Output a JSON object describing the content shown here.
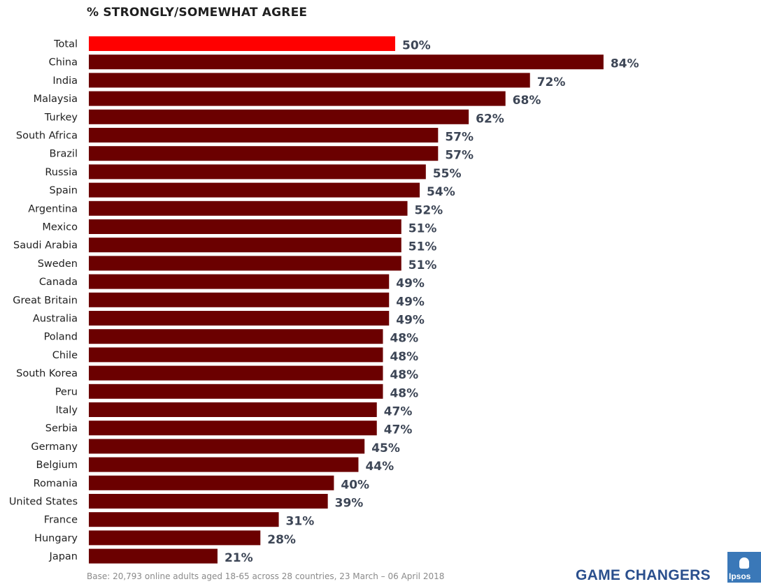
{
  "chart_data": {
    "type": "bar",
    "orientation": "horizontal",
    "subtitle": "% STRONGLY/SOMEWHAT AGREE",
    "categories": [
      "Total",
      "China",
      "India",
      "Malaysia",
      "Turkey",
      "South Africa",
      "Brazil",
      "Russia",
      "Spain",
      "Argentina",
      "Mexico",
      "Saudi Arabia",
      "Sweden",
      "Canada",
      "Great Britain",
      "Australia",
      "Poland",
      "Chile",
      "South Korea",
      "Peru",
      "Italy",
      "Serbia",
      "Germany",
      "Belgium",
      "Romania",
      "United States",
      "France",
      "Hungary",
      "Japan"
    ],
    "values": [
      50,
      84,
      72,
      68,
      62,
      57,
      57,
      55,
      54,
      52,
      51,
      51,
      51,
      49,
      49,
      49,
      48,
      48,
      48,
      48,
      47,
      47,
      45,
      44,
      40,
      39,
      31,
      28,
      21
    ],
    "value_labels": [
      "50%",
      "84%",
      "72%",
      "68%",
      "62%",
      "57%",
      "57%",
      "55%",
      "54%",
      "52%",
      "51%",
      "51%",
      "51%",
      "49%",
      "49%",
      "49%",
      "48%",
      "48%",
      "48%",
      "48%",
      "47%",
      "47%",
      "45%",
      "44%",
      "40%",
      "39%",
      "31%",
      "28%",
      "21%"
    ],
    "highlight_category": "Total",
    "colors": {
      "highlight": "#ff0000",
      "bar": "#6b0000",
      "value_label": "#3d4656"
    },
    "xlim": [
      0,
      84
    ],
    "grid": false,
    "legend": "none"
  },
  "footer": {
    "base_note": "Base: 20,793 online adults aged 18-65 across 28 countries,  23 March – 06 April 2018",
    "brand": "GAME CHANGERS",
    "logo_text": "Ipsos"
  }
}
